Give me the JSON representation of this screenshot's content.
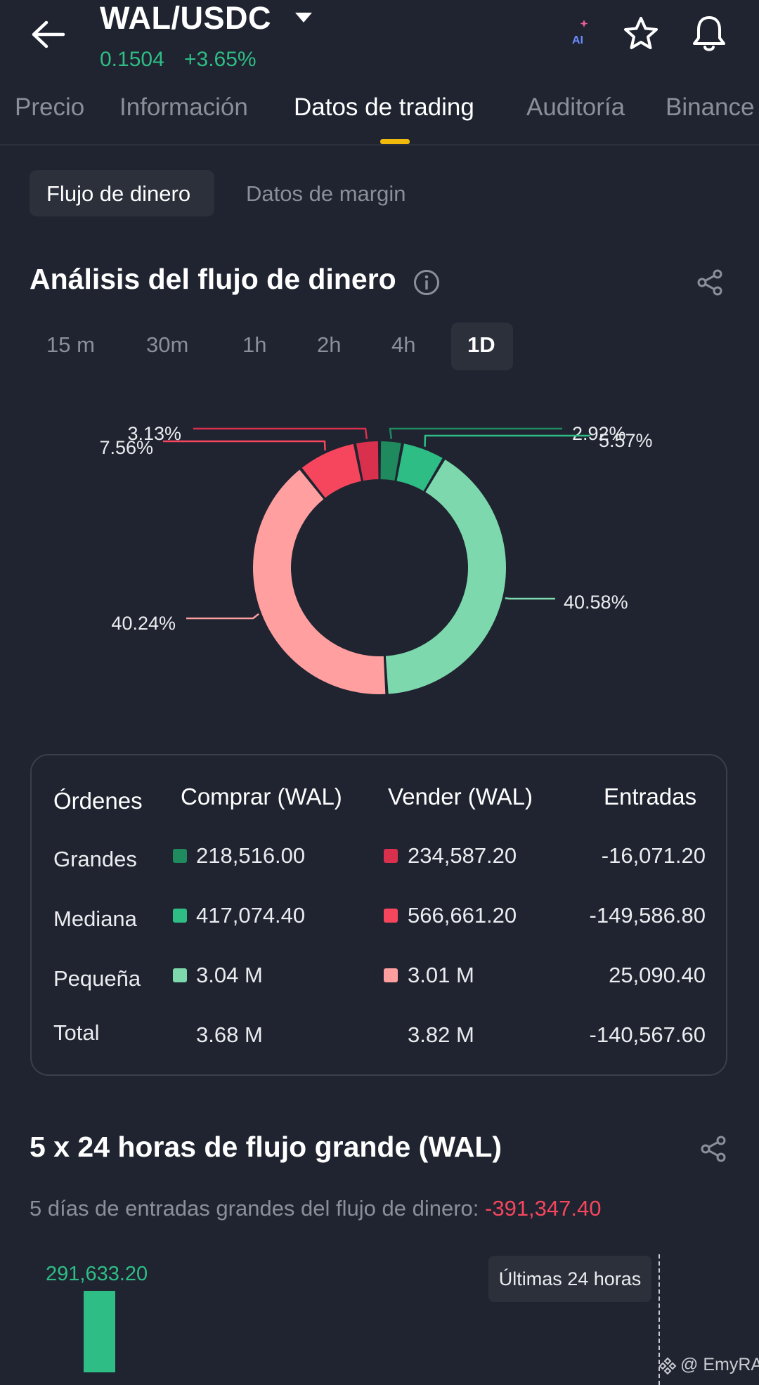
{
  "header": {
    "pair": "WAL/USDC",
    "price": "0.1504",
    "change": "+3.65%",
    "ai_label": "AI"
  },
  "tabs": [
    {
      "label": "Precio"
    },
    {
      "label": "Información"
    },
    {
      "label": "Datos de trading"
    },
    {
      "label": "Auditoría"
    },
    {
      "label": "Binance"
    }
  ],
  "subtabs": [
    {
      "label": "Flujo de dinero"
    },
    {
      "label": "Datos de margin"
    }
  ],
  "analysis": {
    "title": "Análisis del flujo de dinero",
    "timeframes": [
      "15 m",
      "30m",
      "1h",
      "2h",
      "4h",
      "1D"
    ]
  },
  "chart_data": {
    "type": "pie",
    "donut": true,
    "slices": [
      {
        "name": "Comprar Grandes",
        "value": 2.92,
        "label": "2.92%",
        "color": "#1e8a5e"
      },
      {
        "name": "Comprar Mediana",
        "value": 5.57,
        "label": "5.57%",
        "color": "#2ebd85"
      },
      {
        "name": "Comprar Pequeña",
        "value": 40.58,
        "label": "40.58%",
        "color": "#7dd9ad"
      },
      {
        "name": "Vender Pequeña",
        "value": 40.24,
        "label": "40.24%",
        "color": "#ff9fa0"
      },
      {
        "name": "Vender Mediana",
        "value": 7.56,
        "label": "7.56%",
        "color": "#f6465d"
      },
      {
        "name": "Vender Grandes",
        "value": 3.13,
        "label": "3.13%",
        "color": "#d9304e"
      }
    ]
  },
  "table": {
    "headers": [
      "Órdenes",
      "Comprar (WAL)",
      "Vender (WAL)",
      "Entradas"
    ],
    "rows": [
      {
        "label": "Grandes",
        "buy": "218,516.00",
        "sell": "234,587.20",
        "inflow": "-16,071.20",
        "buy_color": "#1e8a5e",
        "sell_color": "#d9304e"
      },
      {
        "label": "Mediana",
        "buy": "417,074.40",
        "sell": "566,661.20",
        "inflow": "-149,586.80",
        "buy_color": "#2ebd85",
        "sell_color": "#f6465d"
      },
      {
        "label": "Pequeña",
        "buy": "3.04 M",
        "sell": "3.01 M",
        "inflow": "25,090.40",
        "buy_color": "#7dd9ad",
        "sell_color": "#ff9fa0"
      }
    ],
    "total": {
      "label": "Total",
      "buy": "3.68 M",
      "sell": "3.82 M",
      "inflow": "-140,567.60"
    }
  },
  "large_flow": {
    "title": "5 x 24 horas de flujo grande (WAL)",
    "summary_label": "5 días de entradas grandes del flujo de dinero: ",
    "summary_value": "-391,347.40",
    "bar_value": "291,633.20",
    "tooltip": "Últimas 24 horas"
  },
  "watermark": "@ EmyRA"
}
